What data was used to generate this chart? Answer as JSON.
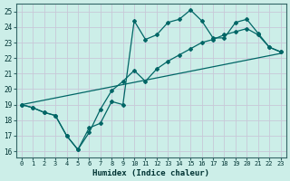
{
  "xlabel": "Humidex (Indice chaleur)",
  "bg_color": "#cceee8",
  "grid_color": "#c8c8d8",
  "line_color": "#006666",
  "xlim": [
    -0.5,
    23.5
  ],
  "ylim": [
    15.6,
    25.5
  ],
  "x_ticks": [
    0,
    1,
    2,
    3,
    4,
    5,
    6,
    7,
    8,
    9,
    10,
    11,
    12,
    13,
    14,
    15,
    16,
    17,
    18,
    19,
    20,
    21,
    22,
    23
  ],
  "y_ticks": [
    16,
    17,
    18,
    19,
    20,
    21,
    22,
    23,
    24,
    25
  ],
  "line1_x": [
    0,
    1,
    2,
    3,
    4,
    5,
    6,
    7,
    8,
    9,
    10,
    11,
    12,
    13,
    14,
    15,
    16,
    17,
    18,
    19,
    20,
    21,
    22,
    23
  ],
  "line1_y": [
    19.0,
    18.8,
    18.5,
    18.3,
    17.0,
    16.1,
    17.5,
    17.8,
    19.2,
    19.0,
    24.4,
    23.2,
    23.5,
    24.3,
    24.5,
    25.1,
    24.4,
    23.3,
    23.3,
    24.3,
    24.5,
    23.6,
    22.7,
    22.4
  ],
  "line2_x": [
    0,
    1,
    2,
    3,
    4,
    5,
    6,
    7,
    8,
    9,
    10,
    11,
    12,
    13,
    14,
    15,
    16,
    17,
    18,
    19,
    20,
    21,
    22,
    23
  ],
  "line2_y": [
    19.0,
    18.8,
    18.5,
    18.3,
    17.0,
    16.1,
    17.2,
    18.7,
    19.9,
    20.5,
    21.2,
    20.5,
    21.3,
    21.8,
    22.2,
    22.6,
    23.0,
    23.2,
    23.5,
    23.7,
    23.9,
    23.5,
    22.7,
    22.4
  ],
  "line3_x": [
    0,
    23
  ],
  "line3_y": [
    19.0,
    22.3
  ]
}
